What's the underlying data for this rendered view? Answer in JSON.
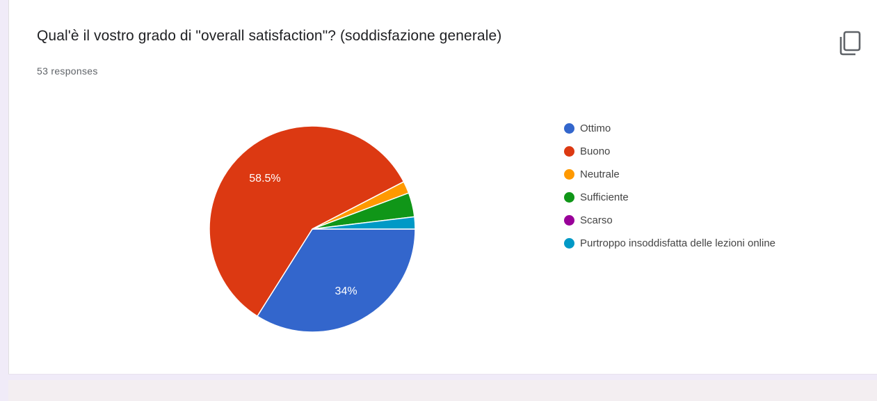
{
  "question": {
    "title": "Qual'è il vostro grado di \"overall satisfaction\"? (soddisfazione generale)",
    "responses": "53 responses"
  },
  "icons": {
    "copy": "copy-icon"
  },
  "chart_data": {
    "type": "pie",
    "categories": [
      "Ottimo",
      "Buono",
      "Neutrale",
      "Sufficiente",
      "Scarso",
      "Purtroppo insoddisfatta delle lezioni online"
    ],
    "values": [
      34,
      58.5,
      1.9,
      3.8,
      0,
      1.9
    ],
    "counts": [
      18,
      31,
      1,
      2,
      0,
      1
    ],
    "colors": [
      "#3366cc",
      "#dc3912",
      "#ff9900",
      "#109618",
      "#990099",
      "#0099c6"
    ],
    "data_labels": [
      "34%",
      "58.5%",
      "",
      "",
      "",
      ""
    ],
    "legend_position": "right"
  }
}
